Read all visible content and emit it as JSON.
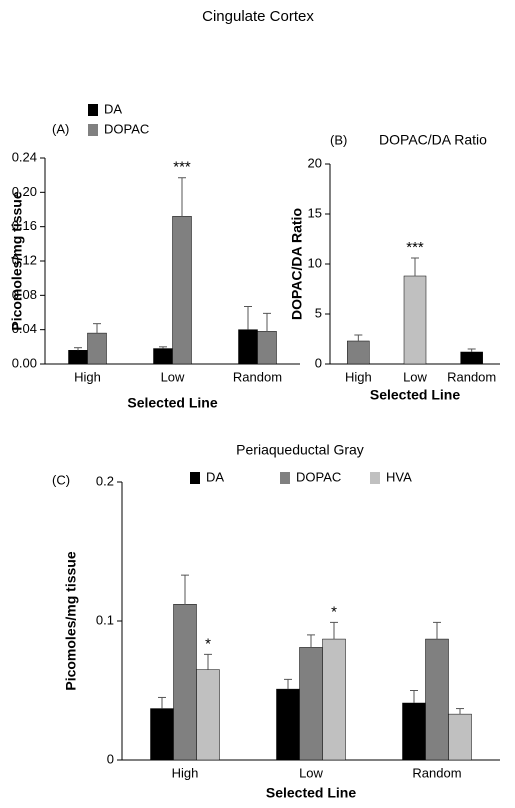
{
  "title": "Cingulate Cortex",
  "chart_data": [
    {
      "type": "bar",
      "panel_label": "(A)",
      "y_label": "Picomoles/mg tissue",
      "x_label": "Selected Line",
      "categories": [
        "High",
        "Low",
        "Random"
      ],
      "series": [
        {
          "name": "DA",
          "color": "#000000",
          "values": [
            0.016,
            0.018,
            0.04
          ],
          "errors": [
            0.003,
            0.002,
            0.027
          ]
        },
        {
          "name": "DOPAC",
          "color": "#808080",
          "values": [
            0.036,
            0.172,
            0.038
          ],
          "errors": [
            0.011,
            0.045,
            0.021
          ]
        }
      ],
      "annotations": [
        {
          "text": "***",
          "category": 1,
          "series": 1
        }
      ],
      "ylim": [
        0,
        0.24
      ],
      "yticks": [
        {
          "value": 0,
          "label": "0.00"
        },
        0.04,
        0.08,
        0.12,
        0.16,
        {
          "value": 0.2,
          "label": "0.20"
        },
        0.24
      ],
      "legend": "upper-left"
    },
    {
      "type": "bar",
      "panel_label": "(B)",
      "title": "DOPAC/DA Ratio",
      "y_label": "DOPAC/DA Ratio",
      "x_label": "Selected Line",
      "categories": [
        "High",
        "Low",
        "Random"
      ],
      "values": [
        2.3,
        8.8,
        1.2
      ],
      "errors": [
        0.6,
        1.8,
        0.3
      ],
      "colors": [
        "#808080",
        "#c0c0c0",
        "#000000"
      ],
      "annotations": [
        {
          "text": "***",
          "category": 1
        }
      ],
      "ylim": [
        0,
        20
      ],
      "yticks": [
        0,
        5,
        10,
        15,
        20
      ]
    },
    {
      "type": "bar",
      "panel_label": "(C)",
      "title": "Periaqueductal Gray",
      "y_label": "Picomoles/mg tissue",
      "x_label": "Selected Line",
      "categories": [
        "High",
        "Low",
        "Random"
      ],
      "series": [
        {
          "name": "DA",
          "color": "#000000",
          "values": [
            0.037,
            0.051,
            0.041
          ],
          "errors": [
            0.008,
            0.007,
            0.009
          ]
        },
        {
          "name": "DOPAC",
          "color": "#808080",
          "values": [
            0.112,
            0.081,
            0.087
          ],
          "errors": [
            0.021,
            0.009,
            0.012
          ]
        },
        {
          "name": "HVA",
          "color": "#c0c0c0",
          "values": [
            0.065,
            0.087,
            0.033
          ],
          "errors": [
            0.011,
            0.012,
            0.004
          ]
        }
      ],
      "annotations": [
        {
          "text": "*",
          "category": 0,
          "series": 2
        },
        {
          "text": "*",
          "category": 1,
          "series": 2
        }
      ],
      "ylim": [
        0,
        0.2
      ],
      "yticks": [
        0,
        0.1,
        0.2
      ],
      "legend": "top"
    }
  ]
}
